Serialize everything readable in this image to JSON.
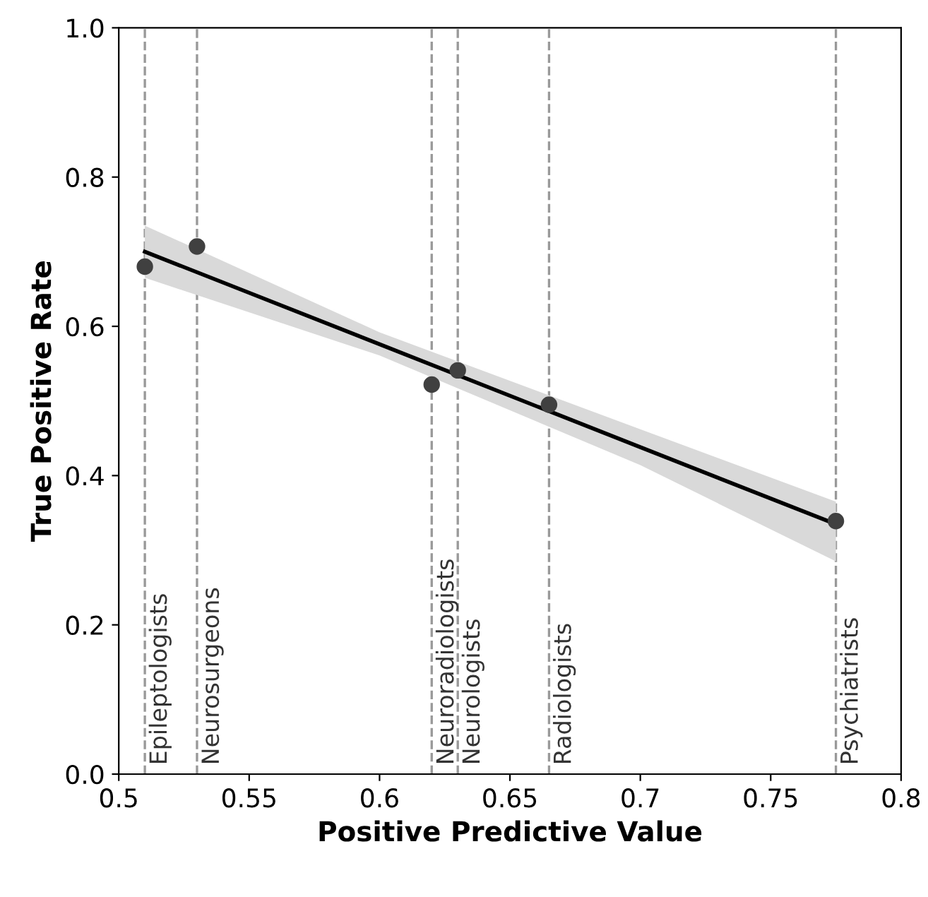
{
  "chart_data": {
    "type": "scatter",
    "xlabel": "Positive Predictive Value",
    "ylabel": "True Positive Rate",
    "xlim": [
      0.5,
      0.8
    ],
    "ylim": [
      0.0,
      1.0
    ],
    "xticks": [
      0.5,
      0.55,
      0.6,
      0.65,
      0.7,
      0.75,
      0.8
    ],
    "yticks": [
      {
        "value": 0.0,
        "label": "0.0"
      },
      {
        "value": 0.2,
        "label": "0.2"
      },
      {
        "value": 0.4,
        "label": "0.4"
      },
      {
        "value": 0.6,
        "label": "0.6"
      },
      {
        "value": 0.8,
        "label": "0.8"
      },
      {
        "value": 1.0,
        "label": "1.0"
      }
    ],
    "grid": false,
    "marker": "circle",
    "series": [
      {
        "color": "#404040",
        "x": [
          0.51,
          0.53,
          0.62,
          0.63,
          0.665,
          0.775
        ],
        "values": [
          0.68,
          0.707,
          0.522,
          0.541,
          0.495,
          0.339
        ]
      },
      {
        "type": "line",
        "marker": "none",
        "color": "#000000",
        "x": [
          0.51,
          0.6,
          0.7,
          0.775
        ],
        "values": [
          0.7,
          0.576,
          0.438,
          0.335
        ],
        "lower": [
          0.665,
          0.561,
          0.414,
          0.285
        ],
        "upper": [
          0.735,
          0.592,
          0.462,
          0.365
        ]
      }
    ],
    "ref_lines": [
      {
        "axis": "x",
        "value": 0.51,
        "label": "Epileptologists",
        "color": "#999999",
        "line_style": "dashed"
      },
      {
        "axis": "x",
        "value": 0.53,
        "label": "Neurosurgeons",
        "color": "#999999",
        "line_style": "dashed"
      },
      {
        "axis": "x",
        "value": 0.62,
        "label": "Neuroradiologists",
        "color": "#999999",
        "line_style": "dashed"
      },
      {
        "axis": "x",
        "value": 0.63,
        "label": "Neurologists",
        "color": "#999999",
        "line_style": "dashed"
      },
      {
        "axis": "x",
        "value": 0.665,
        "label": "Radiologists",
        "color": "#999999",
        "line_style": "dashed"
      },
      {
        "axis": "x",
        "value": 0.775,
        "label": "Psychiatrists",
        "color": "#999999",
        "line_style": "dashed"
      }
    ]
  }
}
